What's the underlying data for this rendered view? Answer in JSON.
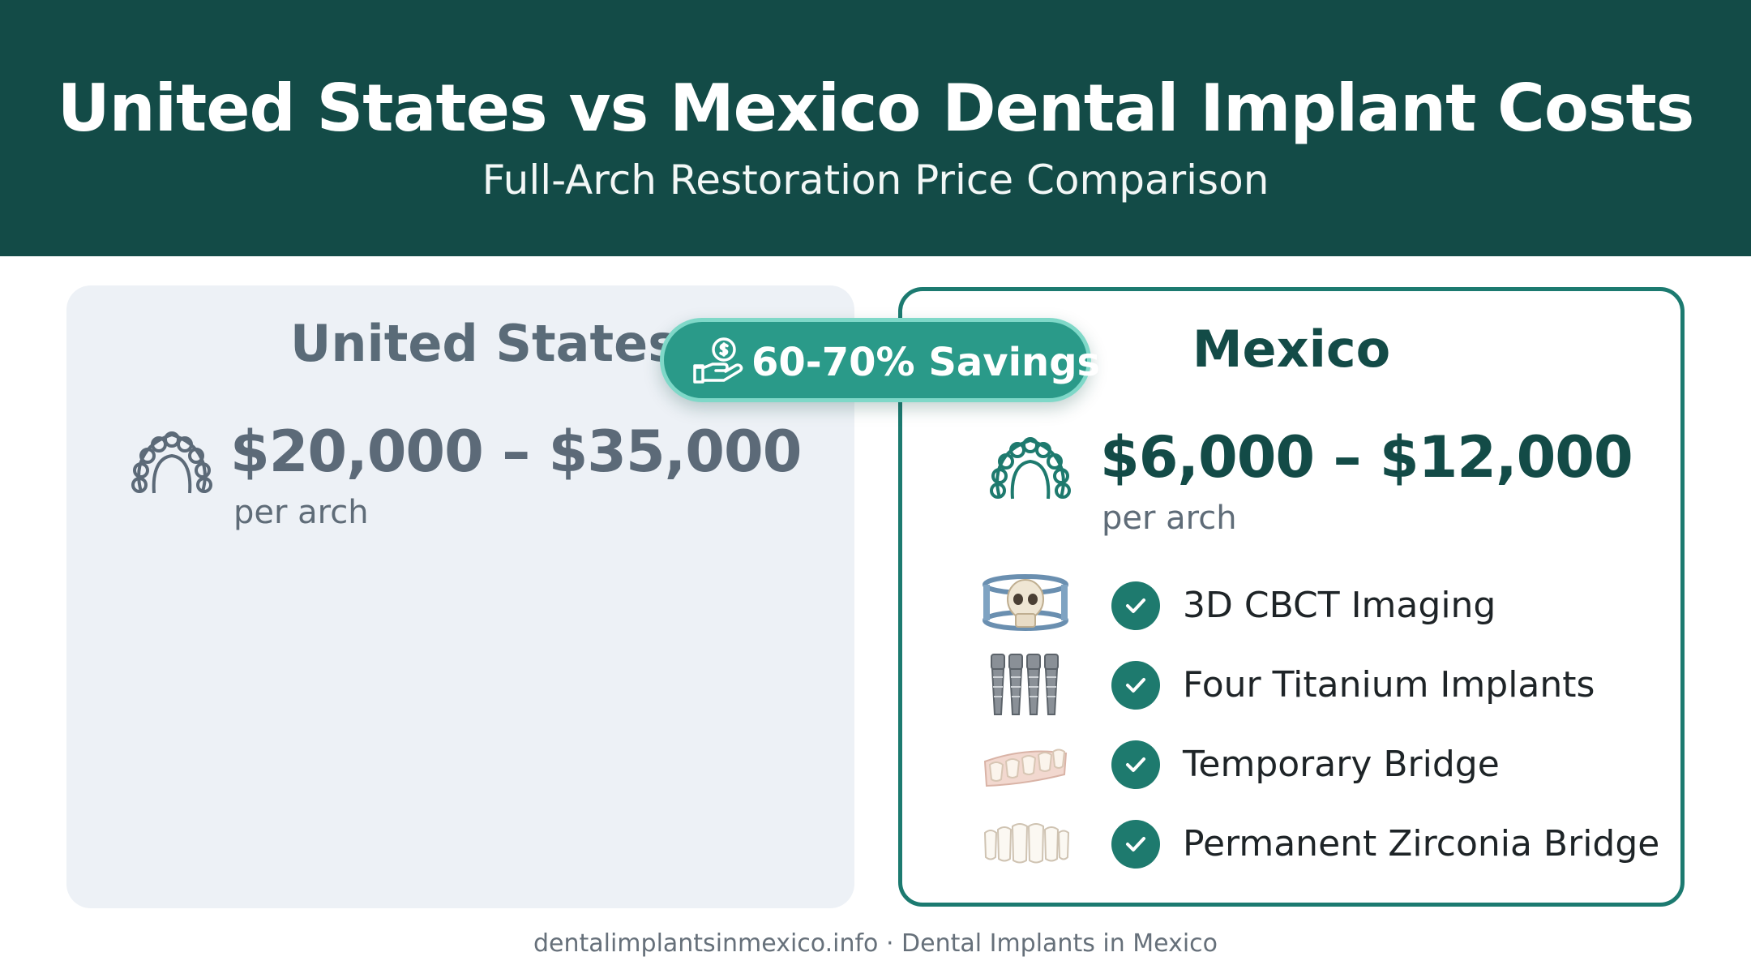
{
  "header": {
    "title": "United States vs Mexico Dental Implant Costs",
    "subtitle": "Full-Arch Restoration Price Comparison"
  },
  "badge": {
    "label": "60-70% Savings",
    "icon": "hand-coin-icon"
  },
  "us": {
    "country": "United States",
    "price": "$20,000 – $35,000",
    "unit": "per arch",
    "icon": "dental-arch-icon"
  },
  "mexico": {
    "country": "Mexico",
    "price": "$6,000 – $12,000",
    "unit": "per arch",
    "icon": "dental-arch-icon",
    "features": [
      {
        "label": "3D CBCT Imaging",
        "icon": "skull-scan-icon"
      },
      {
        "label": "Four Titanium Implants",
        "icon": "implants-icon"
      },
      {
        "label": "Temporary Bridge",
        "icon": "temporary-bridge-icon"
      },
      {
        "label": "Permanent Zirconia Bridge",
        "icon": "zirconia-bridge-icon"
      }
    ]
  },
  "footer": "dentalimplantsinmexico.info · Dental Implants in Mexico",
  "colors": {
    "header_bg": "#134b47",
    "accent": "#2a9a89",
    "check": "#1e7a6e",
    "us_card": "#edf1f6"
  }
}
